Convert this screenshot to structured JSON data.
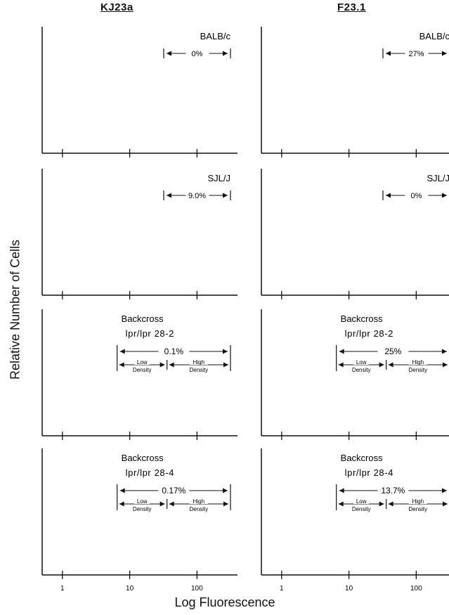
{
  "figure": {
    "y_axis_label": "Relative Number of Cells",
    "x_axis_label": "Log Fluorescence",
    "columns": [
      "KJ23a",
      "F23.1"
    ]
  },
  "chart_data": [
    {
      "type": "histogram",
      "column": "KJ23a",
      "label_lines": [
        "BALB/c"
      ],
      "percent": "0%",
      "has_density_split": false,
      "xscale": "log",
      "xlim": [
        0.5,
        400
      ],
      "xticks": [
        1,
        10,
        100
      ]
    },
    {
      "type": "histogram",
      "column": "F23.1",
      "label_lines": [
        "BALB/c"
      ],
      "percent": "27%",
      "has_density_split": false,
      "xscale": "log",
      "xlim": [
        0.5,
        400
      ],
      "xticks": [
        1,
        10,
        100
      ]
    },
    {
      "type": "histogram",
      "column": "KJ23a",
      "label_lines": [
        "SJL/J"
      ],
      "percent": "9.0%",
      "has_density_split": false,
      "xscale": "log",
      "xlim": [
        0.5,
        400
      ],
      "xticks": [
        1,
        10,
        100
      ]
    },
    {
      "type": "histogram",
      "column": "F23.1",
      "label_lines": [
        "SJL/J"
      ],
      "percent": "0%",
      "has_density_split": false,
      "xscale": "log",
      "xlim": [
        0.5,
        400
      ],
      "xticks": [
        1,
        10,
        100
      ]
    },
    {
      "type": "histogram",
      "column": "KJ23a",
      "label_lines": [
        "Backcross",
        "lpr/lpr  28-2"
      ],
      "percent": "0.1%",
      "has_density_split": true,
      "low_label": [
        "Low",
        "Density"
      ],
      "high_label": [
        "High",
        "Density"
      ],
      "xscale": "log",
      "xlim": [
        0.5,
        400
      ],
      "xticks": [
        1,
        10,
        100
      ]
    },
    {
      "type": "histogram",
      "column": "F23.1",
      "label_lines": [
        "Backcross",
        "lpr/lpr  28-2"
      ],
      "percent": "25%",
      "has_density_split": true,
      "low_label": [
        "Low",
        "Density"
      ],
      "high_label": [
        "High",
        "Density"
      ],
      "xscale": "log",
      "xlim": [
        0.5,
        400
      ],
      "xticks": [
        1,
        10,
        100
      ]
    },
    {
      "type": "histogram",
      "column": "KJ23a",
      "label_lines": [
        "Backcross",
        "lpr/lpr  28-4"
      ],
      "percent": "0.17%",
      "has_density_split": true,
      "low_label": [
        "Low",
        "Density"
      ],
      "high_label": [
        "High",
        "Density"
      ],
      "xscale": "log",
      "xlim": [
        0.5,
        400
      ],
      "xticks": [
        1,
        10,
        100
      ],
      "tick_labels": [
        "1",
        "10",
        "100"
      ]
    },
    {
      "type": "histogram",
      "column": "F23.1",
      "label_lines": [
        "Backcross",
        "lpr/lpr  28-4"
      ],
      "percent": "13.7%",
      "has_density_split": true,
      "low_label": [
        "Low",
        "Density"
      ],
      "high_label": [
        "High",
        "Density"
      ],
      "xscale": "log",
      "xlim": [
        0.5,
        400
      ],
      "xticks": [
        1,
        10,
        100
      ],
      "tick_labels": [
        "1",
        "10",
        "100"
      ]
    }
  ]
}
